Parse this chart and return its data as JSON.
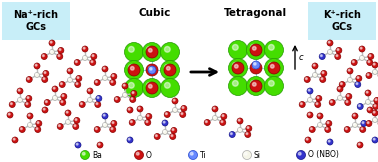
{
  "bg_color": "#ffffff",
  "label_bg_color": "#c8eef8",
  "title_na": "Na⁺-rich\nGCs",
  "title_cubic": "Cubic",
  "title_tetra": "Tetragonal",
  "title_k": "K⁺-rich\nGCs",
  "legend_items": [
    {
      "label": "Ba",
      "color": "#44dd00",
      "edge": "#229900"
    },
    {
      "label": "O",
      "color": "#cc1111",
      "edge": "#880000"
    },
    {
      "label": "Ti",
      "color": "#6688ff",
      "edge": "#2244cc"
    },
    {
      "label": "Si",
      "color": "#f5f5e8",
      "edge": "#aaaaaa"
    },
    {
      "label": "O (NBO)",
      "color": "#3333cc",
      "edge": "#111188"
    }
  ],
  "figsize": [
    3.78,
    1.62
  ],
  "dpi": 100
}
